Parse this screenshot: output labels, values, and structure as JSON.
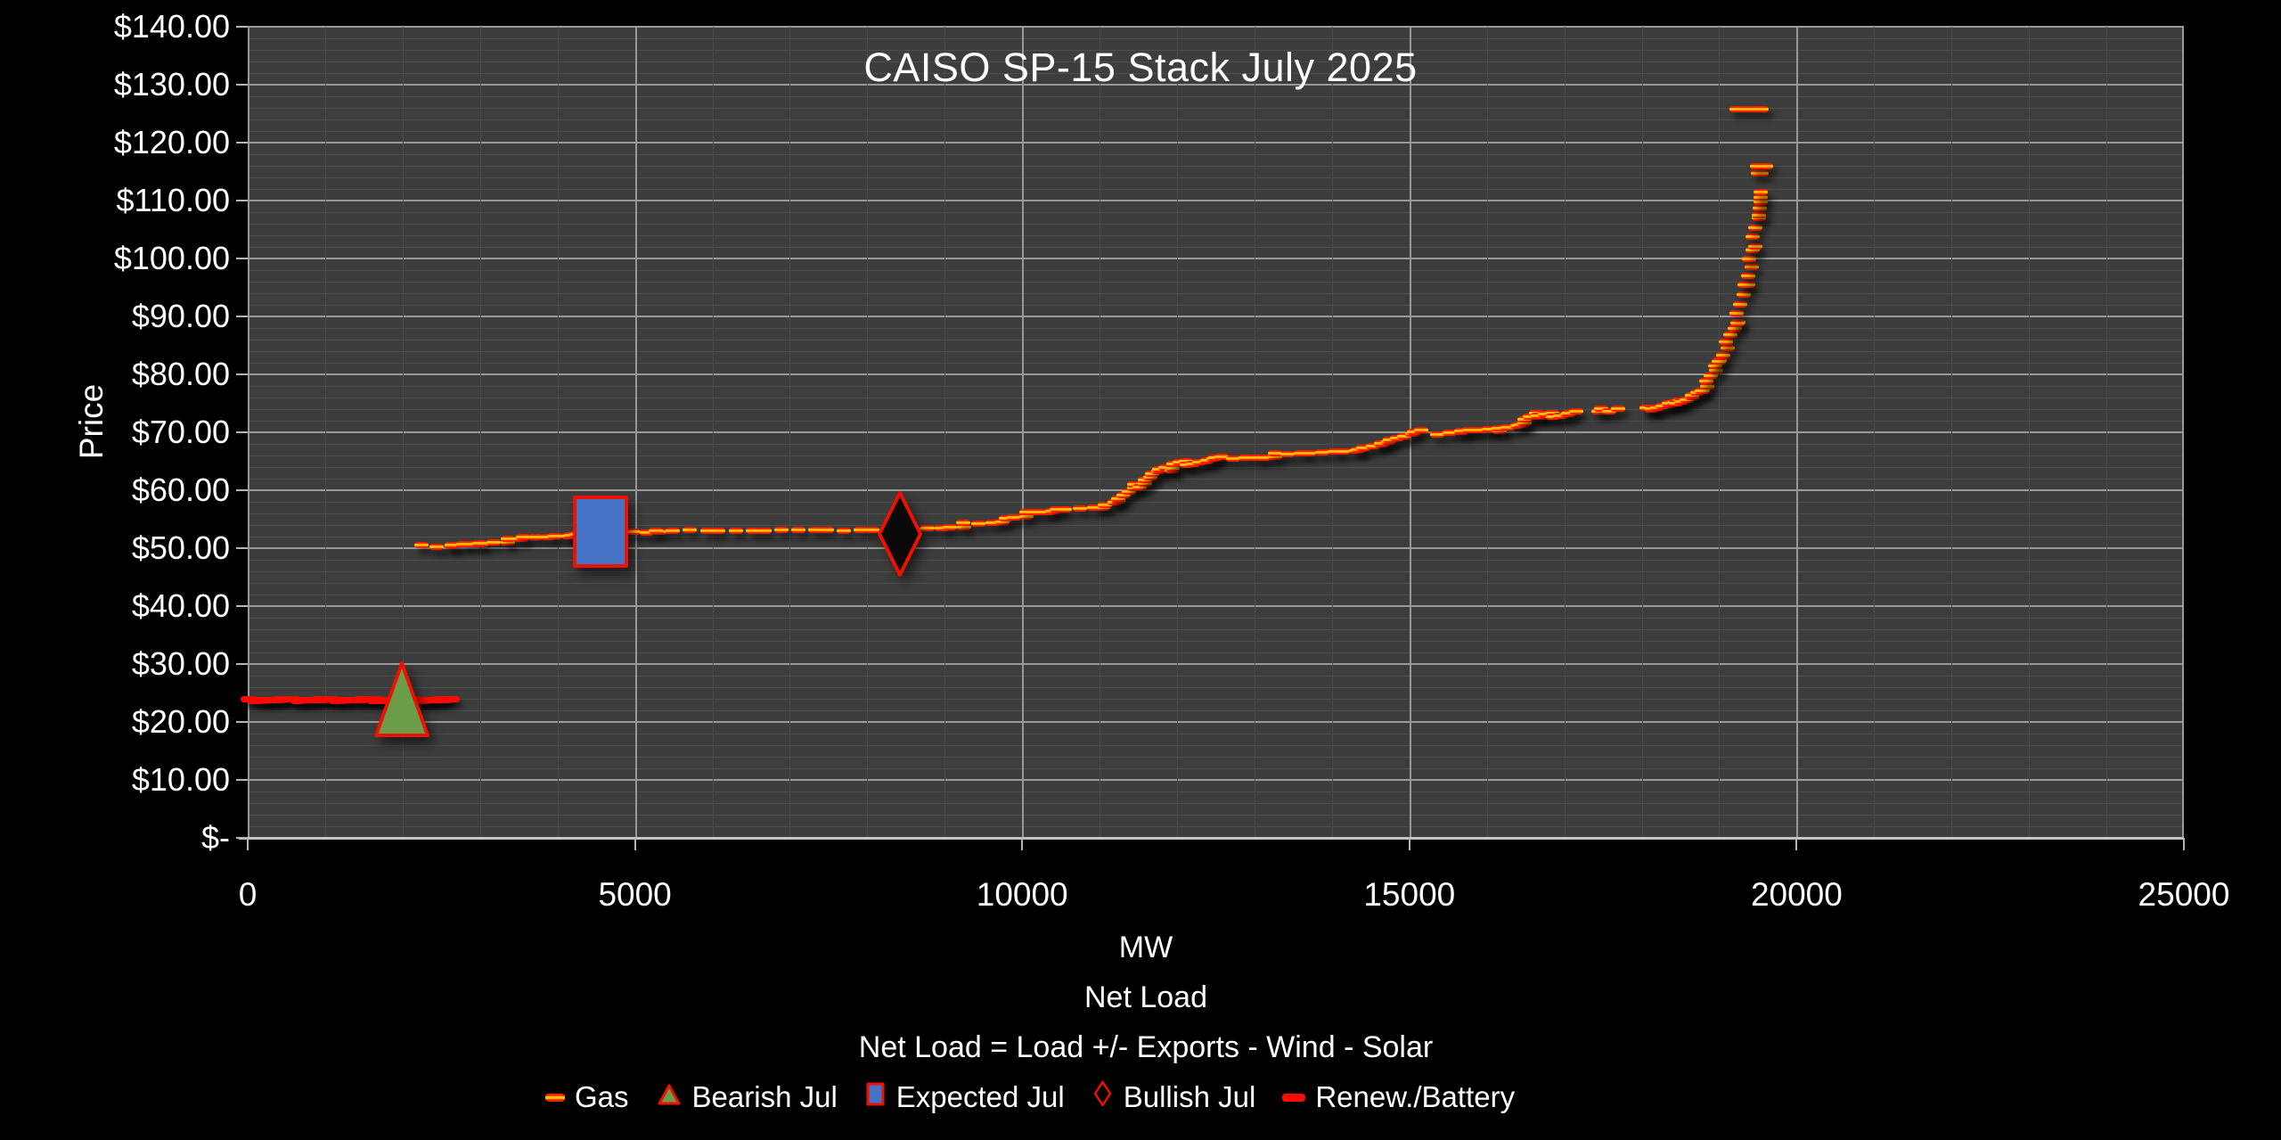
{
  "title": "CAISO SP-15 Stack July 2025",
  "y_axis": {
    "label": "Price",
    "tick_labels": [
      "$140.00",
      "$130.00",
      "$120.00",
      "$110.00",
      "$100.00",
      "$90.00",
      "$80.00",
      "$70.00",
      "$60.00",
      "$50.00",
      "$40.00",
      "$30.00",
      "$20.00",
      "$10.00",
      "$-"
    ],
    "min": 0,
    "max": 140,
    "major_step": 10,
    "minor_step": 2
  },
  "x_axis": {
    "tick_labels": [
      "0",
      "5000",
      "10000",
      "15000",
      "20000",
      "25000"
    ],
    "ticks": [
      0,
      5000,
      10000,
      15000,
      20000,
      25000
    ],
    "min": 0,
    "max": 25000,
    "minor_step": 1000,
    "major_step": 5000,
    "unit": "MW",
    "subtitle": "Net Load",
    "formula": "Net Load = Load +/- Exports  - Wind - Solar"
  },
  "legend": [
    {
      "label": "Gas",
      "glyph": "gas-dash"
    },
    {
      "label": "Bearish Jul",
      "glyph": "triangle"
    },
    {
      "label": "Expected Jul",
      "glyph": "square"
    },
    {
      "label": "Bullish Jul",
      "glyph": "diamond-outline"
    },
    {
      "label": "Renew./Battery",
      "glyph": "red-dash"
    }
  ],
  "colors": {
    "page_bg": "#000000",
    "plot_bg": "#3d3d3d",
    "grid_minor": "#4e4e4e",
    "grid_major": "#9a9a9a",
    "axis_line": "#c4c4c4",
    "text": "#ffffff",
    "gas_red": "#ff1e00",
    "gas_yellow": "#ffc000",
    "renew_red": "#ff0a00",
    "bearish_fill": "#6a9c49",
    "expected_fill": "#4472c4",
    "bullish_fill": "#0a0a0a",
    "marker_stroke": "#ee1000"
  },
  "chart_data": {
    "type": "scatter",
    "title": "CAISO SP-15 Stack July 2025",
    "xlabel": "MW (Net Load)",
    "ylabel": "Price",
    "xlim": [
      0,
      25000
    ],
    "ylim": [
      0,
      140
    ],
    "grid": "minor+major",
    "legend_position": "bottom",
    "series": [
      {
        "name": "Gas",
        "marker": "dash",
        "note": "supply stack of dash points; segments = [mw_start, mw_end, price_start, price_end, step_mw, price_jitter]",
        "segments": [
          [
            2280,
            2620,
            50.4,
            50.4,
            160,
            0.1
          ],
          [
            2620,
            3010,
            50.7,
            50.75,
            155,
            0.1
          ],
          [
            3010,
            3340,
            50.95,
            51.0,
            160,
            0.1
          ],
          [
            3340,
            3560,
            51.6,
            51.65,
            150,
            0.1
          ],
          [
            3560,
            4140,
            51.9,
            52.05,
            155,
            0.1
          ],
          [
            4140,
            4520,
            52.3,
            52.45,
            150,
            0.1
          ],
          [
            4520,
            5300,
            52.7,
            52.85,
            155,
            0.08
          ],
          [
            5300,
            8300,
            53.0,
            53.15,
            195,
            0.07
          ],
          [
            8300,
            9260,
            53.3,
            53.65,
            165,
            0.1
          ],
          [
            9260,
            9770,
            54.3,
            54.65,
            160,
            0.15
          ],
          [
            9770,
            10070,
            55.3,
            55.5,
            140,
            0.15
          ],
          [
            10070,
            10410,
            56.25,
            56.35,
            135,
            0.12
          ],
          [
            10410,
            11070,
            56.7,
            57.0,
            150,
            0.12
          ],
          [
            11070,
            11270,
            57.6,
            58.2,
            95,
            0.3
          ],
          [
            11270,
            11670,
            58.6,
            62.4,
            52,
            0.45
          ],
          [
            11670,
            11970,
            62.8,
            64.1,
            62,
            0.4
          ],
          [
            11970,
            12470,
            64.4,
            65.3,
            62,
            0.35
          ],
          [
            12470,
            13270,
            65.55,
            65.75,
            135,
            0.12
          ],
          [
            13270,
            14320,
            66.3,
            66.8,
            145,
            0.15
          ],
          [
            14320,
            14630,
            67.3,
            68.0,
            100,
            0.3
          ],
          [
            14630,
            15150,
            68.4,
            69.9,
            70,
            0.45
          ],
          [
            15390,
            15660,
            69.7,
            70.1,
            110,
            0.2
          ],
          [
            15660,
            16170,
            70.3,
            70.45,
            82,
            0.15
          ],
          [
            16170,
            16470,
            70.7,
            71.2,
            100,
            0.2
          ],
          [
            16470,
            16670,
            71.5,
            73.2,
            55,
            0.5
          ],
          [
            16670,
            17160,
            72.7,
            73.6,
            70,
            0.4
          ],
          [
            17410,
            17670,
            73.3,
            74.4,
            85,
            0.35
          ],
          [
            18060,
            18470,
            74.0,
            75.2,
            52,
            0.3
          ],
          [
            18470,
            18770,
            75.3,
            77.0,
            48,
            0.35
          ],
          [
            18770,
            19020,
            77.5,
            82.0,
            40,
            0.5
          ],
          [
            19020,
            19220,
            82.5,
            88.5,
            34,
            0.55
          ],
          [
            19220,
            19340,
            89.0,
            95.0,
            28,
            0.55
          ],
          [
            19340,
            19430,
            95.5,
            101.0,
            25,
            0.5
          ],
          [
            19430,
            19490,
            102.0,
            106.5,
            22,
            0.45
          ]
        ],
        "extra_dashes": [
          [
            19510,
            107.4,
            16
          ],
          [
            19520,
            108.7,
            16
          ],
          [
            19530,
            109.7,
            16
          ],
          [
            19535,
            110.6,
            16
          ],
          [
            19540,
            111.4,
            16
          ],
          [
            19520,
            114.7,
            20
          ],
          [
            19545,
            116.0,
            26
          ],
          [
            19390,
            125.8,
            44
          ]
        ]
      },
      {
        "name": "Renew./Battery",
        "marker": "dash-solid",
        "segments": [
          [
            40,
            2620,
            23.8,
            23.8,
            58,
            0.12
          ]
        ]
      },
      {
        "name": "Bearish Jul",
        "marker": "triangle",
        "points": [
          [
            1990,
            23.9
          ]
        ],
        "size": [
          58,
          81
        ]
      },
      {
        "name": "Expected Jul",
        "marker": "square",
        "points": [
          [
            4555,
            52.9
          ]
        ],
        "size": [
          58,
          77
        ]
      },
      {
        "name": "Bullish Jul",
        "marker": "diamond",
        "points": [
          [
            8420,
            52.4
          ]
        ],
        "size": [
          46,
          92
        ]
      }
    ]
  }
}
